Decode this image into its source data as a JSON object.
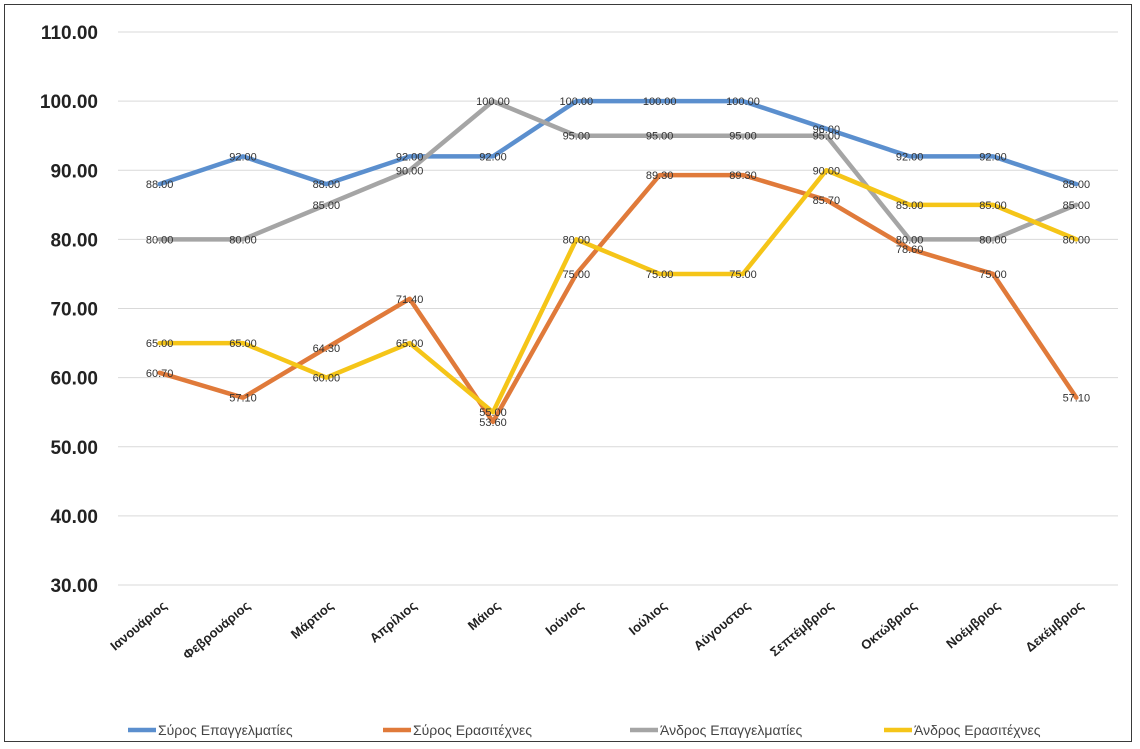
{
  "chart_data": {
    "type": "line",
    "categories": [
      "Ιανουάριος",
      "Φεβρουάριος",
      "Μάρτιος",
      "Απρίλιος",
      "Μάιος",
      "Ιούνιος",
      "Ιούλιος",
      "Αύγουστος",
      "Σεπτέμβριος",
      "Οκτώβριος",
      "Νοέμβριος",
      "Δεκέμβριος"
    ],
    "ylim": [
      30,
      110
    ],
    "yticks": [
      "30.00",
      "40.00",
      "50.00",
      "60.00",
      "70.00",
      "80.00",
      "90.00",
      "100.00",
      "110.00"
    ],
    "grid": true,
    "legend_position": "bottom",
    "series": [
      {
        "name": "Σύρος Επαγγελματίες",
        "color": "#5b8fce",
        "values": [
          88,
          92,
          88,
          92,
          92,
          100,
          100,
          100,
          96,
          92,
          92,
          88
        ],
        "labels": [
          "88.00",
          "92.00",
          "88.00",
          "92.00",
          "92.00",
          "100.00",
          "100.00",
          "100.00",
          "96.00",
          "92.00",
          "92.00",
          "88.00"
        ]
      },
      {
        "name": "Σύρος Ερασιτέχνες",
        "color": "#e07a3a",
        "values": [
          60.7,
          57.1,
          64.3,
          71.4,
          53.6,
          75,
          89.3,
          89.3,
          85.7,
          78.6,
          75,
          57.1
        ],
        "labels": [
          "60.70",
          "57.10",
          "64.30",
          "71.40",
          "53.60",
          "75.00",
          "89.30",
          "89.30",
          "85.70",
          "78.60",
          "75.00",
          "57.10"
        ]
      },
      {
        "name": "Άνδρος Επαγγελματίες",
        "color": "#a5a5a5",
        "values": [
          80,
          80,
          85,
          90,
          100,
          95,
          95,
          95,
          95,
          80,
          80,
          85
        ],
        "labels": [
          "80.00",
          "80.00",
          "85.00",
          "90.00",
          "100.00",
          "95.00",
          "95.00",
          "95.00",
          "95.00",
          "80.00",
          "80.00",
          "85.00"
        ]
      },
      {
        "name": "Άνδρος Ερασιτέχνες",
        "color": "#f5c518",
        "values": [
          65,
          65,
          60,
          65,
          55,
          80,
          75,
          75,
          90,
          85,
          85,
          80
        ],
        "labels": [
          "65.00",
          "65.00",
          "60.00",
          "65.00",
          "55.00",
          "80.00",
          "75.00",
          "75.00",
          "90.00",
          "85.00",
          "85.00",
          "80.00"
        ]
      }
    ]
  }
}
